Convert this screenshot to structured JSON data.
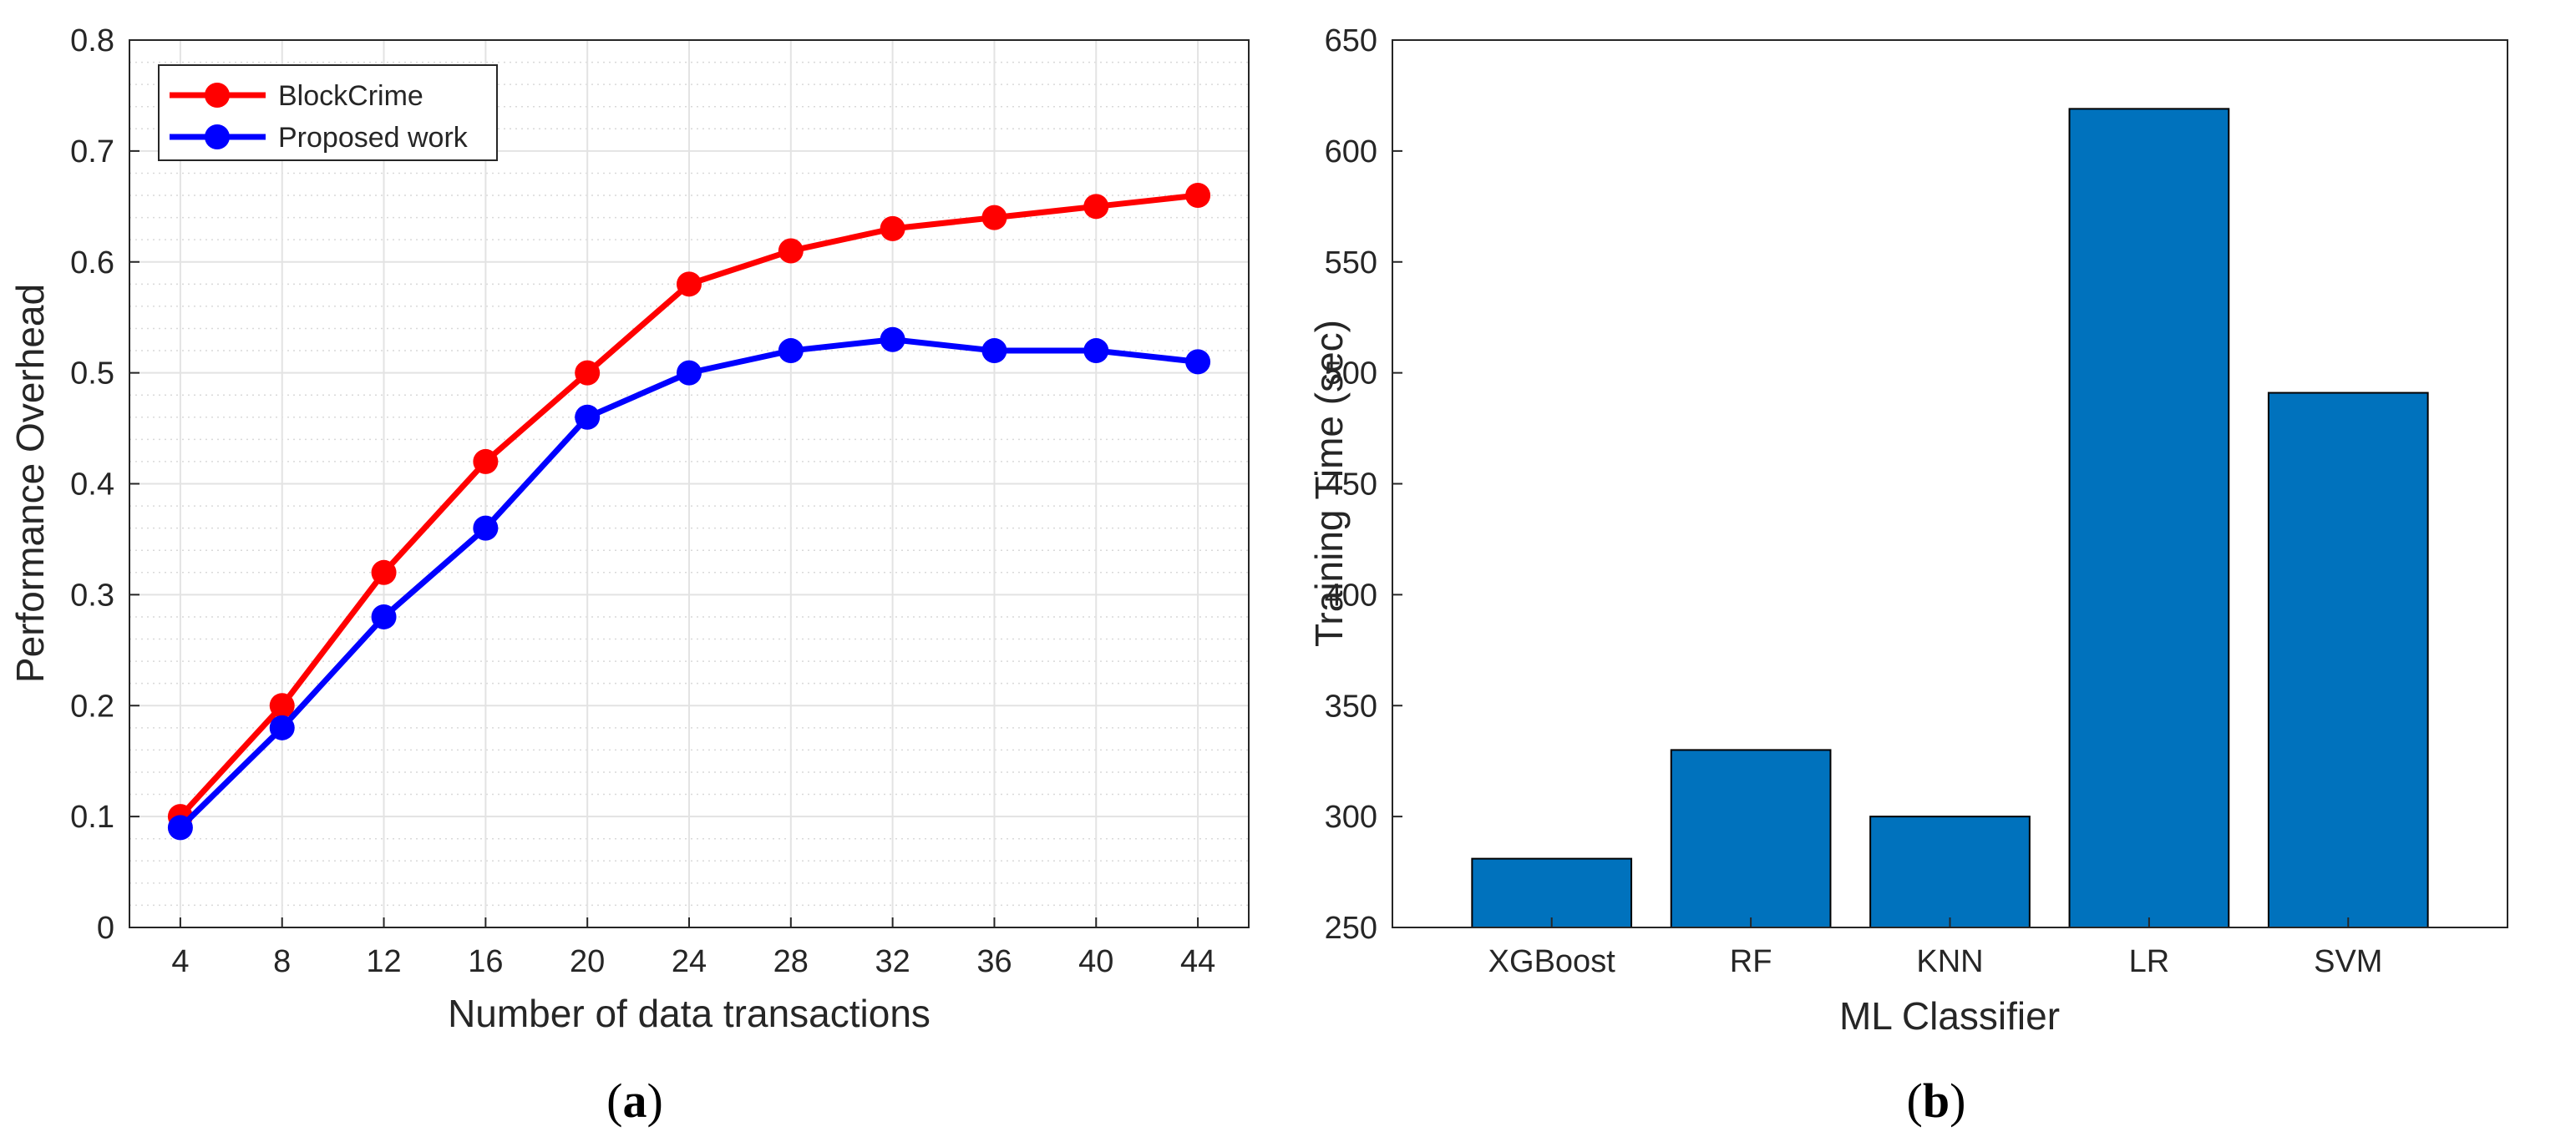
{
  "panel_labels": {
    "a": {
      "open": "(",
      "letter": "a",
      "close": ")"
    },
    "b": {
      "open": "(",
      "letter": "b",
      "close": ")"
    }
  },
  "chart_data": [
    {
      "type": "line",
      "panel": "a",
      "title": "",
      "xlabel": "Number of data transactions",
      "ylabel": "Performance Overhead",
      "x": [
        4,
        8,
        12,
        16,
        20,
        24,
        28,
        32,
        36,
        40,
        44
      ],
      "xticks": [
        "4",
        "8",
        "12",
        "16",
        "20",
        "24",
        "28",
        "32",
        "36",
        "40",
        "44"
      ],
      "yticks": [
        "0",
        "0.1",
        "0.2",
        "0.3",
        "0.4",
        "0.5",
        "0.6",
        "0.7",
        "0.8"
      ],
      "xlim": [
        2,
        46
      ],
      "ylim": [
        0,
        0.8
      ],
      "grid": true,
      "minor_grid": true,
      "legend": "top-left",
      "series": [
        {
          "name": "BlockCrime",
          "color": "#ff0000",
          "values": [
            0.1,
            0.2,
            0.32,
            0.42,
            0.5,
            0.58,
            0.61,
            0.63,
            0.64,
            0.65,
            0.66
          ]
        },
        {
          "name": "Proposed work",
          "color": "#0000ff",
          "values": [
            0.09,
            0.18,
            0.28,
            0.36,
            0.46,
            0.5,
            0.52,
            0.53,
            0.52,
            0.52,
            0.51
          ]
        }
      ]
    },
    {
      "type": "bar",
      "panel": "b",
      "title": "",
      "xlabel": "ML Classifier",
      "ylabel": "Training Time (sec)",
      "categories": [
        "XGBoost",
        "RF",
        "KNN",
        "LR",
        "SVM"
      ],
      "values": [
        281,
        330,
        300,
        619,
        491
      ],
      "yticks": [
        "250",
        "300",
        "350",
        "400",
        "450",
        "500",
        "550",
        "600",
        "650"
      ],
      "ylim": [
        250,
        650
      ],
      "grid": false,
      "color": "#0072bd"
    }
  ]
}
